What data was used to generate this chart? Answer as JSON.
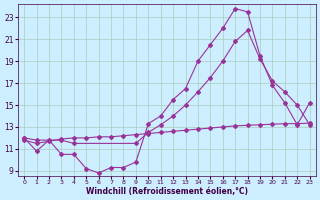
{
  "xlabel": "Windchill (Refroidissement éolien,°C)",
  "background_color": "#cceeff",
  "grid_color": "#aaccbb",
  "line_color": "#993399",
  "xmin": -0.5,
  "xmax": 23.5,
  "ymin": 8.5,
  "ymax": 24.2,
  "yticks": [
    9,
    11,
    13,
    15,
    17,
    19,
    21,
    23
  ],
  "xticks": [
    0,
    1,
    2,
    3,
    4,
    5,
    6,
    7,
    8,
    9,
    10,
    11,
    12,
    13,
    14,
    15,
    16,
    17,
    18,
    19,
    20,
    21,
    22,
    23
  ],
  "line1_x": [
    0,
    1,
    2,
    3,
    4,
    5,
    6,
    7,
    8,
    9,
    10,
    11,
    12,
    13,
    14,
    15,
    16,
    17,
    18,
    19,
    20,
    21,
    22,
    23
  ],
  "line1_y": [
    12.0,
    10.8,
    11.8,
    10.5,
    10.5,
    9.2,
    8.8,
    9.3,
    9.3,
    9.8,
    13.3,
    14.0,
    15.5,
    16.5,
    19.0,
    20.5,
    22.0,
    23.8,
    23.5,
    19.5,
    16.8,
    15.2,
    13.2,
    15.2
  ],
  "line2_x": [
    0,
    1,
    3,
    4,
    9,
    10,
    11,
    12,
    13,
    14,
    15,
    16,
    17,
    18,
    19,
    20,
    21,
    22,
    23
  ],
  "line2_y": [
    12.0,
    11.8,
    11.8,
    11.5,
    11.5,
    12.5,
    13.2,
    14.0,
    15.0,
    16.2,
    17.5,
    19.0,
    20.8,
    21.8,
    19.2,
    17.2,
    16.2,
    15.0,
    13.2
  ],
  "line3_x": [
    0,
    1,
    2,
    3,
    4,
    5,
    6,
    7,
    8,
    9,
    10,
    11,
    12,
    13,
    14,
    15,
    16,
    17,
    18,
    19,
    20,
    21,
    22,
    23
  ],
  "line3_y": [
    11.8,
    11.5,
    11.7,
    11.9,
    12.0,
    12.0,
    12.1,
    12.1,
    12.2,
    12.3,
    12.4,
    12.5,
    12.6,
    12.7,
    12.8,
    12.9,
    13.0,
    13.1,
    13.15,
    13.2,
    13.25,
    13.3,
    13.3,
    13.35
  ]
}
